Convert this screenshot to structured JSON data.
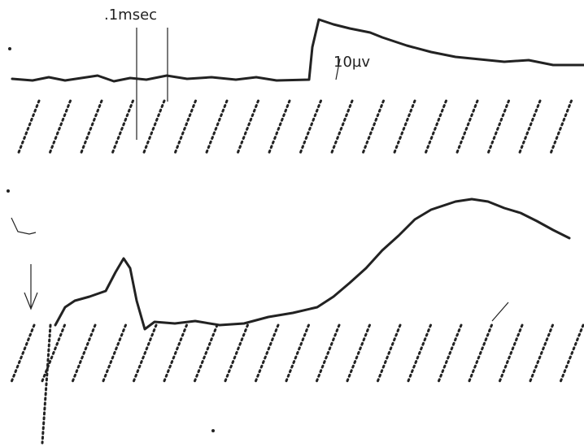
{
  "labels": {
    "time_scale": ".1msec",
    "voltage_scale": "10µv"
  }
}
